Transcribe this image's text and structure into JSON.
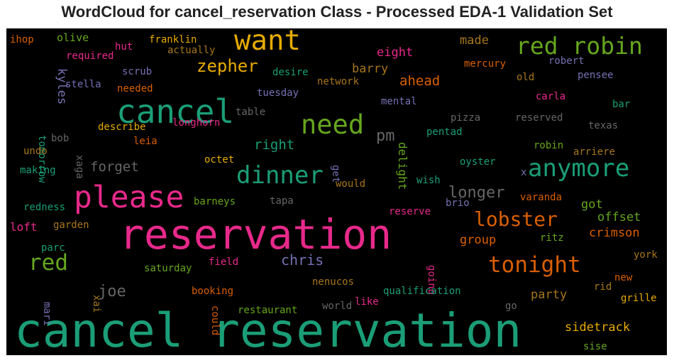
{
  "chart_data": {
    "type": "wordcloud",
    "title": "WordCloud for cancel_reservation Class - Processed EDA-1 Validation Set",
    "colors": {
      "background": "#000000",
      "teal": "#1b9e77",
      "orange": "#d95f02",
      "purple": "#7570b3",
      "magenta": "#e7298a",
      "green": "#66a61e",
      "gold": "#e6ab02",
      "brown": "#a6761d",
      "gray": "#666666"
    },
    "words": [
      {
        "text": "cancel reservation",
        "color": "teal"
      },
      {
        "text": "reservation",
        "color": "magenta"
      },
      {
        "text": "cancel",
        "color": "teal"
      },
      {
        "text": "please",
        "color": "magenta"
      },
      {
        "text": "want",
        "color": "gold"
      },
      {
        "text": "need",
        "color": "green"
      },
      {
        "text": "dinner",
        "color": "teal"
      },
      {
        "text": "anymore",
        "color": "teal"
      },
      {
        "text": "red robin",
        "color": "green"
      },
      {
        "text": "tonight",
        "color": "orange"
      },
      {
        "text": "red",
        "color": "green"
      },
      {
        "text": "lobster",
        "color": "orange"
      },
      {
        "text": "zepher",
        "color": "gold"
      },
      {
        "text": "longer",
        "color": "gray"
      },
      {
        "text": "pm",
        "color": "gray"
      },
      {
        "text": "joe",
        "color": "gray"
      },
      {
        "text": "chris",
        "color": "purple"
      },
      {
        "text": "forget",
        "color": "gray"
      },
      {
        "text": "right",
        "color": "teal"
      },
      {
        "text": "ahead",
        "color": "orange"
      },
      {
        "text": "eight",
        "color": "magenta"
      },
      {
        "text": "barry",
        "color": "brown"
      },
      {
        "text": "made",
        "color": "brown"
      },
      {
        "text": "kyles",
        "color": "purple"
      },
      {
        "text": "delight",
        "color": "green"
      },
      {
        "text": "got",
        "color": "green"
      },
      {
        "text": "offset",
        "color": "green"
      },
      {
        "text": "crimson",
        "color": "orange"
      },
      {
        "text": "group",
        "color": "orange"
      },
      {
        "text": "party",
        "color": "brown"
      },
      {
        "text": "sidetrack",
        "color": "gold"
      },
      {
        "text": "loft",
        "color": "magenta"
      },
      {
        "text": "ihop",
        "color": "orange"
      },
      {
        "text": "olive",
        "color": "green"
      },
      {
        "text": "franklin",
        "color": "gold"
      },
      {
        "text": "hut",
        "color": "magenta"
      },
      {
        "text": "required",
        "color": "magenta"
      },
      {
        "text": "actually",
        "color": "brown"
      },
      {
        "text": "mercury",
        "color": "orange"
      },
      {
        "text": "robert",
        "color": "purple"
      },
      {
        "text": "old",
        "color": "brown"
      },
      {
        "text": "pensee",
        "color": "purple"
      },
      {
        "text": "desire",
        "color": "teal"
      },
      {
        "text": "scrub",
        "color": "purple"
      },
      {
        "text": "stella",
        "color": "purple"
      },
      {
        "text": "needed",
        "color": "orange"
      },
      {
        "text": "network",
        "color": "brown"
      },
      {
        "text": "tuesday",
        "color": "purple"
      },
      {
        "text": "mental",
        "color": "purple"
      },
      {
        "text": "carla",
        "color": "magenta"
      },
      {
        "text": "bar",
        "color": "teal"
      },
      {
        "text": "tomorrow",
        "color": "teal"
      },
      {
        "text": "table",
        "color": "gray"
      },
      {
        "text": "pizza",
        "color": "gray"
      },
      {
        "text": "reserved",
        "color": "gray"
      },
      {
        "text": "texas",
        "color": "gray"
      },
      {
        "text": "bob",
        "color": "gray"
      },
      {
        "text": "xaga",
        "color": "gray"
      },
      {
        "text": "describe",
        "color": "gold"
      },
      {
        "text": "longhorn",
        "color": "magenta"
      },
      {
        "text": "pentad",
        "color": "teal"
      },
      {
        "text": "undo",
        "color": "brown"
      },
      {
        "text": "leia",
        "color": "orange"
      },
      {
        "text": "robin",
        "color": "green"
      },
      {
        "text": "arriere",
        "color": "brown"
      },
      {
        "text": "octet",
        "color": "gold"
      },
      {
        "text": "get",
        "color": "purple"
      },
      {
        "text": "oyster",
        "color": "teal"
      },
      {
        "text": "making",
        "color": "teal"
      },
      {
        "text": "x",
        "color": "purple"
      },
      {
        "text": "would",
        "color": "brown"
      },
      {
        "text": "wish",
        "color": "teal"
      },
      {
        "text": "varanda",
        "color": "orange"
      },
      {
        "text": "redness",
        "color": "teal"
      },
      {
        "text": "barneys",
        "color": "green"
      },
      {
        "text": "tapa",
        "color": "gray"
      },
      {
        "text": "brio",
        "color": "purple"
      },
      {
        "text": "reserve",
        "color": "magenta"
      },
      {
        "text": "garden",
        "color": "brown"
      },
      {
        "text": "ritz",
        "color": "green"
      },
      {
        "text": "parc",
        "color": "teal"
      },
      {
        "text": "field",
        "color": "magenta"
      },
      {
        "text": "going",
        "color": "magenta"
      },
      {
        "text": "york",
        "color": "brown"
      },
      {
        "text": "saturday",
        "color": "green"
      },
      {
        "text": "nenucos",
        "color": "brown"
      },
      {
        "text": "new",
        "color": "orange"
      },
      {
        "text": "rid",
        "color": "brown"
      },
      {
        "text": "booking",
        "color": "orange"
      },
      {
        "text": "qualification",
        "color": "teal"
      },
      {
        "text": "grille",
        "color": "gold"
      },
      {
        "text": "mari",
        "color": "purple"
      },
      {
        "text": "xai",
        "color": "brown"
      },
      {
        "text": "could",
        "color": "orange"
      },
      {
        "text": "world",
        "color": "gray"
      },
      {
        "text": "like",
        "color": "magenta"
      },
      {
        "text": "go",
        "color": "gray"
      },
      {
        "text": "restaurant",
        "color": "green"
      },
      {
        "text": "sise",
        "color": "green"
      }
    ]
  }
}
